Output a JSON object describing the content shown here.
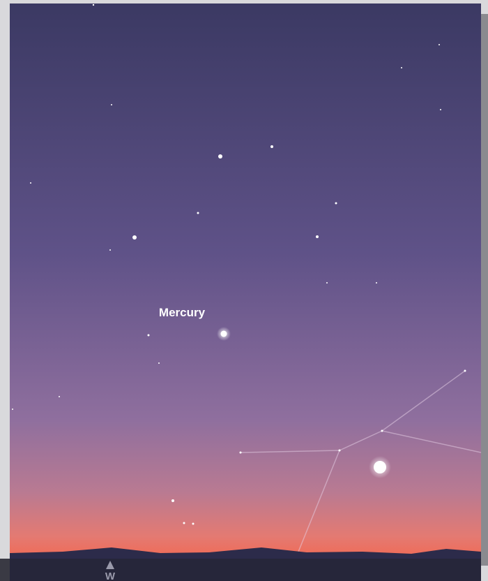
{
  "sky_labels": {
    "planet": "Mercury"
  },
  "compass": {
    "direction": "W"
  }
}
